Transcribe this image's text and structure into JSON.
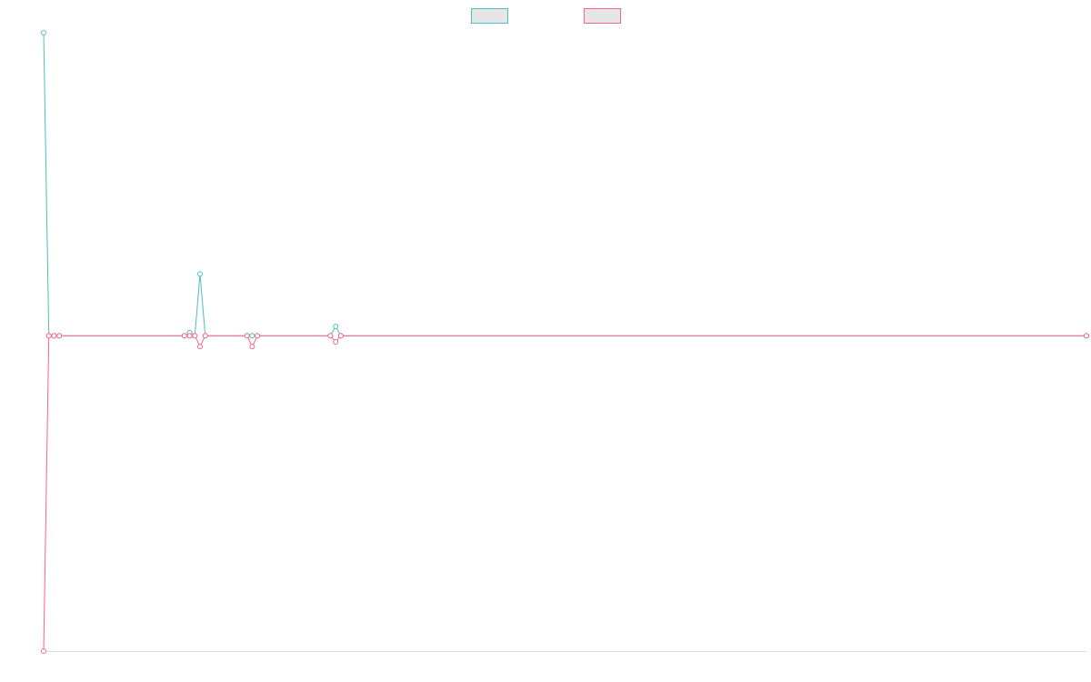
{
  "chart_data": {
    "type": "line",
    "x": [
      0,
      1,
      2,
      3,
      27,
      28,
      29,
      30,
      31,
      39,
      40,
      41,
      55,
      56,
      57,
      200
    ],
    "xlim": [
      0,
      200
    ],
    "ylim": [
      -102,
      98
    ],
    "series": [
      {
        "color": "#4bc0c0",
        "values": [
          98,
          0,
          0,
          0,
          0,
          1,
          0,
          20,
          0,
          0,
          0,
          0,
          0,
          3,
          0,
          0
        ]
      },
      {
        "color": "#ff6384",
        "values": [
          -102,
          0,
          0,
          0,
          0,
          0,
          0,
          -3.5,
          0,
          0,
          -3.5,
          0,
          0,
          -2,
          0,
          0
        ]
      }
    ]
  }
}
